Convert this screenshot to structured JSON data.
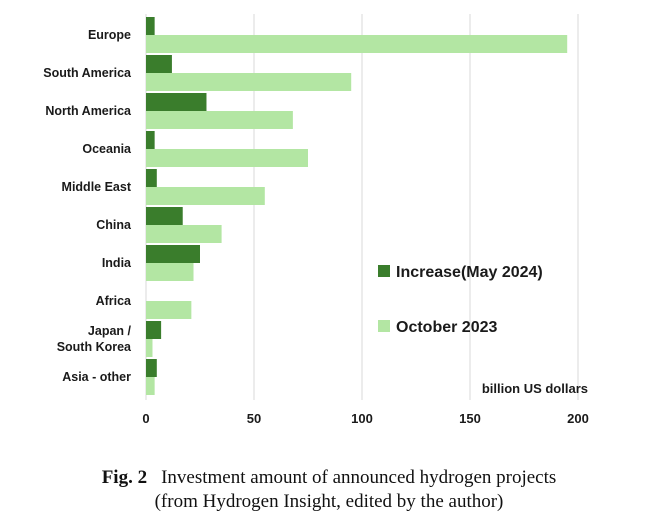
{
  "chart_data": {
    "type": "bar",
    "orientation": "horizontal",
    "categories": [
      [
        "Europe"
      ],
      [
        "South America"
      ],
      [
        "North America"
      ],
      [
        "Oceania"
      ],
      [
        "Middle East"
      ],
      [
        "China"
      ],
      [
        "India"
      ],
      [
        "Africa"
      ],
      [
        "Japan /",
        "South Korea"
      ],
      [
        "Asia - other"
      ]
    ],
    "series": [
      {
        "name": "Increase(May 2024)",
        "color": "#3a7d2c",
        "values": [
          4,
          12,
          28,
          4,
          5,
          17,
          25,
          0,
          7,
          5
        ]
      },
      {
        "name": "October 2023",
        "color": "#b3e6a3",
        "values": [
          195,
          95,
          68,
          75,
          55,
          35,
          22,
          21,
          3,
          4
        ]
      }
    ],
    "xlim": [
      0,
      200
    ],
    "xticks": [
      0,
      50,
      100,
      150,
      200
    ],
    "xlabel": "billion US dollars",
    "grid": true,
    "legend_position": "right, inside plot"
  },
  "caption": {
    "label": "Fig. 2",
    "line1": "Investment amount of announced hydrogen projects",
    "line2": "(from Hydrogen Insight, edited by the author)"
  }
}
